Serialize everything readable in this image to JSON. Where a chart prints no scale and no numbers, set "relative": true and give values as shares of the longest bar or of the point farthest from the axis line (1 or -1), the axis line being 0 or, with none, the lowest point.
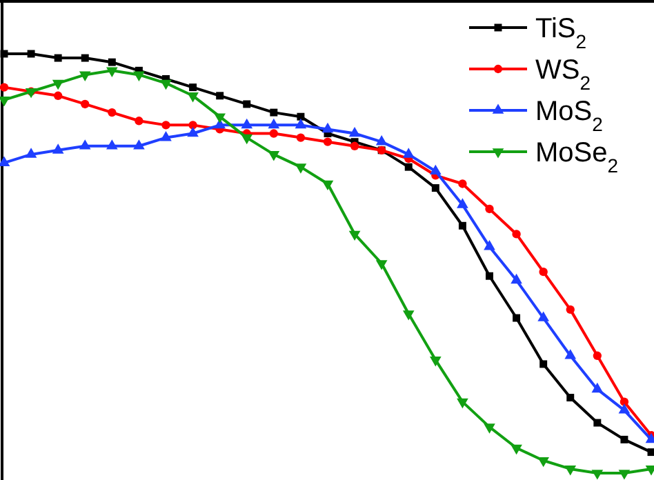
{
  "chart_data": {
    "type": "line",
    "relative": true,
    "legend": "top right",
    "line_style": "solid",
    "categories": [
      null,
      null,
      null,
      null,
      null,
      null,
      null,
      null,
      null,
      null,
      null,
      null,
      null,
      null,
      null,
      null,
      null,
      null,
      null,
      null,
      null,
      null,
      null,
      null,
      null
    ],
    "series": [
      {
        "name": "TiS$_{2}$",
        "color": "#000000",
        "marker": "square",
        "values": [
          1.0,
          1.0,
          0.99,
          0.99,
          0.98,
          0.96,
          0.94,
          0.92,
          0.9,
          0.88,
          0.86,
          0.85,
          0.81,
          0.79,
          0.77,
          0.73,
          0.68,
          0.59,
          0.47,
          0.37,
          0.26,
          0.18,
          0.12,
          0.08,
          0.05
        ]
      },
      {
        "name": "WS$_{2}$",
        "color": "#ff0000",
        "marker": "circle",
        "values": [
          0.92,
          0.91,
          0.9,
          0.88,
          0.86,
          0.84,
          0.83,
          0.83,
          0.82,
          0.81,
          0.81,
          0.8,
          0.79,
          0.78,
          0.77,
          0.75,
          0.71,
          0.69,
          0.63,
          0.57,
          0.48,
          0.39,
          0.28,
          0.17,
          0.09
        ]
      },
      {
        "name": "MoS$_{2}$",
        "color": "#1f3fff",
        "marker": "triangle",
        "values": [
          0.74,
          0.76,
          0.77,
          0.78,
          0.78,
          0.78,
          0.8,
          0.81,
          0.83,
          0.83,
          0.83,
          0.83,
          0.82,
          0.81,
          0.79,
          0.76,
          0.72,
          0.64,
          0.54,
          0.46,
          0.37,
          0.28,
          0.2,
          0.15,
          0.08
        ]
      },
      {
        "name": "MoSe$_{2}$",
        "color": "#12a012",
        "marker": "triangle-down",
        "values": [
          0.89,
          0.91,
          0.93,
          0.95,
          0.96,
          0.95,
          0.93,
          0.9,
          0.85,
          0.8,
          0.76,
          0.73,
          0.69,
          0.57,
          0.5,
          0.38,
          0.27,
          0.17,
          0.11,
          0.06,
          0.03,
          0.01,
          0.0,
          0.0,
          0.01
        ]
      }
    ]
  }
}
